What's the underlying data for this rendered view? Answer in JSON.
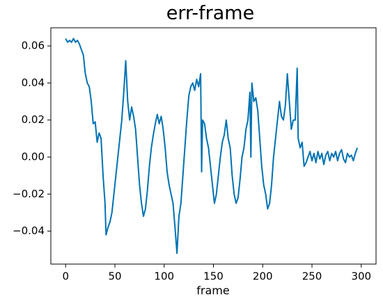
{
  "chart_data": {
    "type": "line",
    "title": "err-frame",
    "x_label": "frame",
    "color": "#0072b2",
    "x": [
      0,
      2,
      4,
      6,
      8,
      10,
      12,
      14,
      16,
      18,
      20,
      22,
      24,
      26,
      28,
      30,
      32,
      34,
      36,
      38,
      40,
      41,
      43,
      45,
      47,
      49,
      51,
      53,
      55,
      57,
      59,
      61,
      63,
      65,
      67,
      69,
      71,
      73,
      75,
      77,
      79,
      81,
      83,
      85,
      87,
      89,
      91,
      93,
      95,
      97,
      99,
      101,
      103,
      105,
      107,
      109,
      111,
      113,
      115,
      117,
      119,
      121,
      123,
      125,
      127,
      129,
      131,
      133,
      135,
      137,
      138,
      139,
      141,
      143,
      145,
      147,
      149,
      151,
      153,
      155,
      157,
      159,
      161,
      163,
      165,
      167,
      169,
      171,
      173,
      175,
      177,
      179,
      181,
      183,
      185,
      187,
      188,
      189,
      191,
      193,
      195,
      197,
      199,
      201,
      203,
      205,
      207,
      209,
      211,
      213,
      215,
      217,
      219,
      221,
      223,
      225,
      229,
      231,
      233,
      235,
      236,
      238,
      240,
      242,
      244,
      246,
      248,
      250,
      252,
      254,
      256,
      258,
      260,
      262,
      264,
      266,
      268,
      270,
      272,
      274,
      276,
      278,
      280,
      282,
      284,
      286,
      288,
      290,
      292,
      294,
      296
    ],
    "values": [
      0.064,
      0.062,
      0.063,
      0.062,
      0.064,
      0.062,
      0.063,
      0.061,
      0.058,
      0.055,
      0.045,
      0.04,
      0.038,
      0.03,
      0.018,
      0.019,
      0.008,
      0.013,
      0.01,
      -0.01,
      -0.025,
      -0.042,
      -0.038,
      -0.035,
      -0.03,
      -0.02,
      -0.01,
      0.0,
      0.01,
      0.02,
      0.035,
      0.052,
      0.03,
      0.02,
      0.027,
      0.022,
      0.015,
      0.0,
      -0.015,
      -0.025,
      -0.032,
      -0.028,
      -0.018,
      -0.005,
      0.005,
      0.012,
      0.018,
      0.023,
      0.018,
      0.022,
      0.015,
      0.005,
      -0.008,
      -0.015,
      -0.02,
      -0.025,
      -0.038,
      -0.052,
      -0.032,
      -0.025,
      -0.01,
      0.005,
      0.02,
      0.033,
      0.038,
      0.04,
      0.036,
      0.042,
      0.038,
      0.045,
      -0.008,
      0.02,
      0.018,
      0.01,
      0.005,
      -0.005,
      -0.015,
      -0.025,
      -0.02,
      -0.01,
      0.0,
      0.008,
      0.012,
      0.02,
      0.01,
      0.005,
      -0.01,
      -0.02,
      -0.025,
      -0.022,
      -0.012,
      0.0,
      0.005,
      0.015,
      0.02,
      0.035,
      0.0,
      0.04,
      0.03,
      0.032,
      0.025,
      0.01,
      -0.005,
      -0.015,
      -0.02,
      -0.028,
      -0.025,
      -0.015,
      0.0,
      0.01,
      0.02,
      0.03,
      0.022,
      0.02,
      0.028,
      0.045,
      0.015,
      0.02,
      0.02,
      0.048,
      0.01,
      0.005,
      0.008,
      -0.005,
      -0.003,
      0.0,
      0.003,
      -0.002,
      0.002,
      -0.003,
      0.003,
      -0.001,
      0.002,
      -0.004,
      0.001,
      0.003,
      -0.002,
      0.002,
      0.0,
      0.003,
      -0.002,
      0.002,
      0.004,
      -0.001,
      -0.003,
      0.002,
      0.0,
      0.001,
      -0.002,
      0.002,
      0.005
    ],
    "xlim": [
      -15,
      315
    ],
    "xticks": [
      0,
      50,
      100,
      150,
      200,
      250,
      300
    ],
    "ylim": [
      -0.0578,
      0.0698
    ],
    "yticks": [
      {
        "value": -0.04,
        "label": "−0.04"
      },
      {
        "value": -0.02,
        "label": "−0.02"
      },
      {
        "value": 0,
        "label": "0.00"
      },
      {
        "value": 0.02,
        "label": "0.02"
      },
      {
        "value": 0.04,
        "label": "0.04"
      },
      {
        "value": 0.06,
        "label": "0.06"
      }
    ]
  }
}
